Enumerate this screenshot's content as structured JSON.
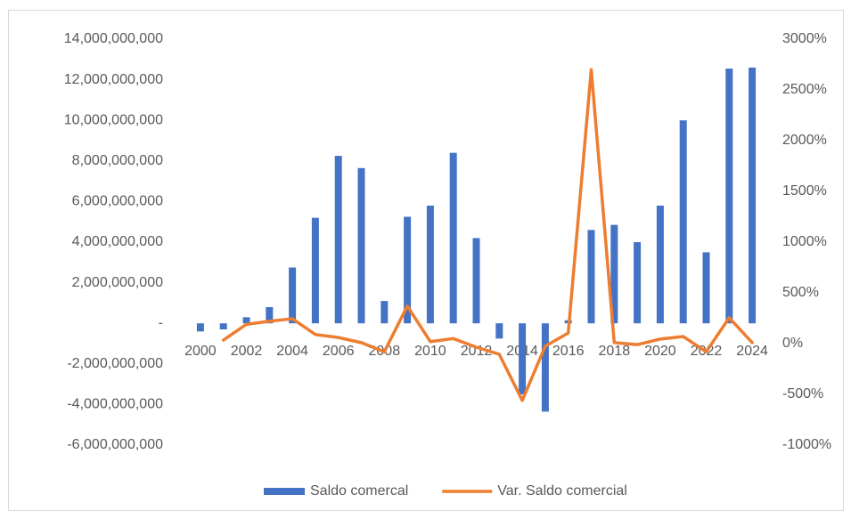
{
  "chart_data": {
    "type": "bar+line",
    "categories": [
      "2000",
      null,
      "2002",
      null,
      "2004",
      null,
      "2006",
      null,
      "2008",
      null,
      "2010",
      null,
      "2012",
      null,
      "2014",
      null,
      "2016",
      null,
      "2018",
      null,
      "2020",
      null,
      "2022",
      null,
      "2024"
    ],
    "series": [
      {
        "name": "Saldo comercal",
        "type": "bar",
        "color": "#4472c4",
        "axis": "y",
        "values": [
          -400000000,
          -300000000,
          300000000,
          800000000,
          2750000000,
          5200000000,
          8250000000,
          7650000000,
          1100000000,
          5250000000,
          5800000000,
          8400000000,
          4200000000,
          -750000000,
          -3500000000,
          -4350000000,
          150000000,
          4600000000,
          4850000000,
          4000000000,
          5800000000,
          10000000000,
          3500000000,
          12550000000,
          12600000000
        ]
      },
      {
        "name": "Var. Saldo comercial",
        "type": "line",
        "color": "#ed7d31",
        "axis": "y2",
        "values": [
          null,
          35,
          190,
          220,
          245,
          90,
          60,
          10,
          -80,
          370,
          20,
          50,
          -35,
          -105,
          -560,
          -25,
          105,
          2700,
          10,
          -10,
          45,
          70,
          -80,
          255,
          10
        ]
      }
    ],
    "ylim": [
      -6000000000,
      14000000000
    ],
    "yticks": [
      {
        "value": -6000000000,
        "label": "-6,000,000,000"
      },
      {
        "value": -4000000000,
        "label": "-4,000,000,000"
      },
      {
        "value": -2000000000,
        "label": "-2,000,000,000"
      },
      {
        "value": 0,
        "label": "-"
      },
      {
        "value": 2000000000,
        "label": "2,000,000,000"
      },
      {
        "value": 4000000000,
        "label": "4,000,000,000"
      },
      {
        "value": 6000000000,
        "label": "6,000,000,000"
      },
      {
        "value": 8000000000,
        "label": "8,000,000,000"
      },
      {
        "value": 10000000000,
        "label": "10,000,000,000"
      },
      {
        "value": 12000000000,
        "label": "12,000,000,000"
      },
      {
        "value": 14000000000,
        "label": "14,000,000,000"
      }
    ],
    "y2lim": [
      -1000,
      3000
    ],
    "y2ticks": [
      {
        "value": -1000,
        "label": "-1000%"
      },
      {
        "value": -500,
        "label": "-500%"
      },
      {
        "value": 0,
        "label": "0%"
      },
      {
        "value": 500,
        "label": "500%"
      },
      {
        "value": 1000,
        "label": "1000%"
      },
      {
        "value": 1500,
        "label": "1500%"
      },
      {
        "value": 2000,
        "label": "2000%"
      },
      {
        "value": 2500,
        "label": "2500%"
      },
      {
        "value": 3000,
        "label": "3000%"
      }
    ],
    "grid": false,
    "legend": "bottom"
  }
}
